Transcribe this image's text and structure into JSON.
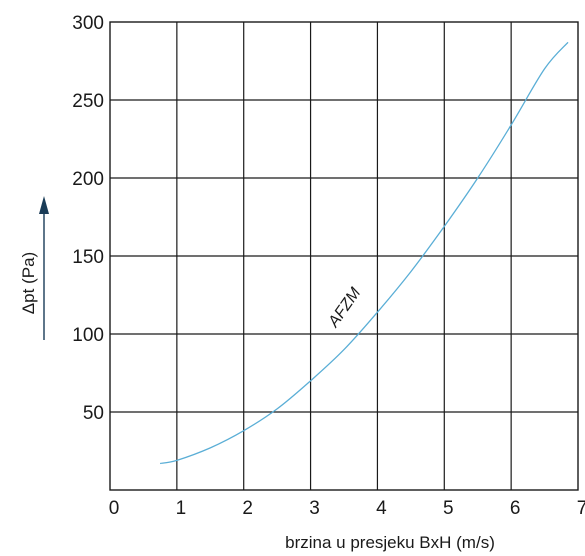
{
  "chart_data": {
    "type": "line",
    "xlabel": "brzina u presjeku BxH (m/s)",
    "ylabel": "Δpt (Pa)",
    "xlim": [
      0,
      7
    ],
    "ylim": [
      0,
      300
    ],
    "x_ticks": [
      "0",
      "1",
      "2",
      "3",
      "4",
      "5",
      "6",
      "7"
    ],
    "y_ticks": [
      "50",
      "100",
      "150",
      "200",
      "250",
      "300"
    ],
    "grid": true,
    "series": [
      {
        "name": "AFZM",
        "color": "#5aaed6",
        "x": [
          0.75,
          1.0,
          1.5,
          2.0,
          2.5,
          3.0,
          3.5,
          4.0,
          4.5,
          5.0,
          5.5,
          6.0,
          6.5,
          6.85
        ],
        "y": [
          17,
          19,
          27,
          38,
          52,
          70,
          90,
          114,
          140,
          169,
          200,
          234,
          270,
          287
        ]
      }
    ]
  }
}
